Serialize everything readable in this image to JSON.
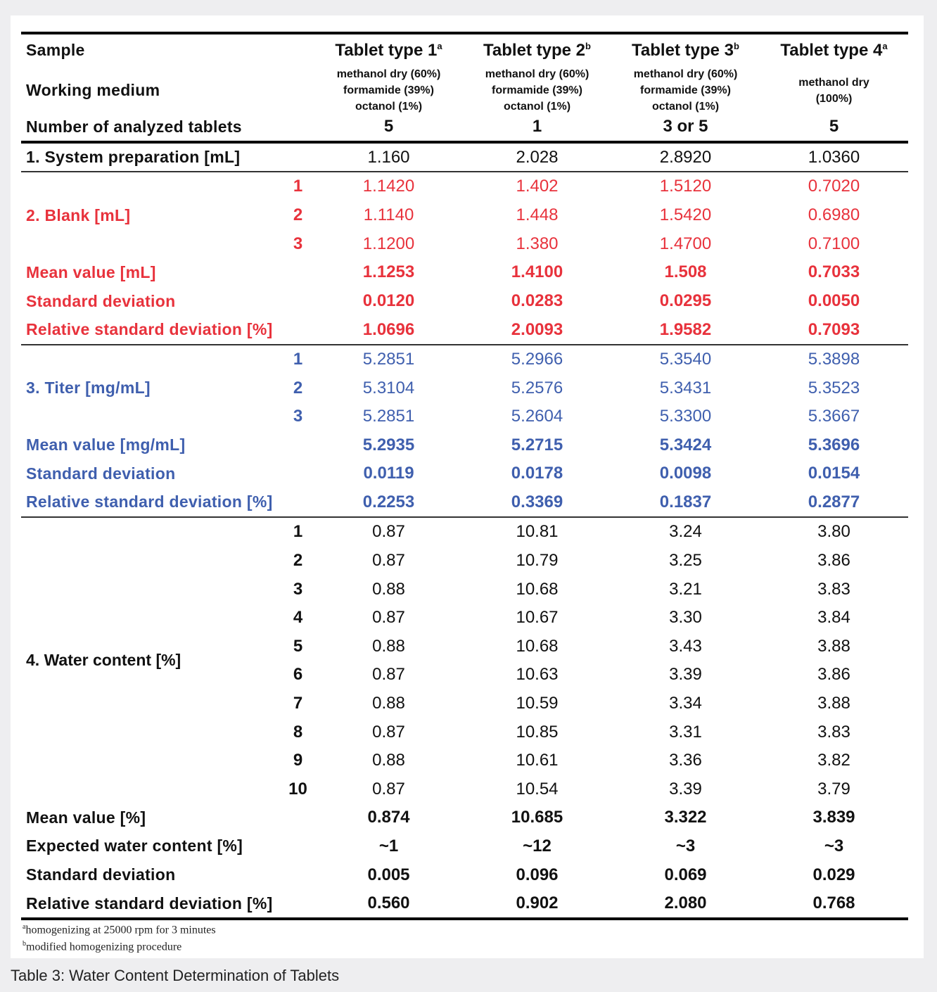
{
  "colors": {
    "blank": "#e8323c",
    "titer": "#3f5fae",
    "text": "#111111"
  },
  "header": {
    "sample_label": "Sample",
    "working_label": "Working medium",
    "number_label": "Number of analyzed tablets",
    "columns": [
      {
        "title": "Tablet type 1",
        "sup": "a",
        "medium": [
          "methanol dry (60%)",
          "formamide (39%)",
          "octanol (1%)"
        ],
        "n": "5"
      },
      {
        "title": "Tablet type 2",
        "sup": "b",
        "medium": [
          "methanol dry (60%)",
          "formamide (39%)",
          "octanol (1%)"
        ],
        "n": "1"
      },
      {
        "title": "Tablet type 3",
        "sup": "b",
        "medium": [
          "methanol dry (60%)",
          "formamide (39%)",
          "octanol (1%)"
        ],
        "n": "3 or 5"
      },
      {
        "title": "Tablet type 4",
        "sup": "a",
        "medium": [
          "methanol dry",
          "(100%)"
        ],
        "n": "5"
      }
    ]
  },
  "system": {
    "label": "1. System preparation [mL]",
    "values": [
      "1.160",
      "2.028",
      "2.8920",
      "1.0360"
    ]
  },
  "blank": {
    "label": "2. Blank [mL]",
    "replicates": [
      {
        "index": "1",
        "values": [
          "1.1420",
          "1.402",
          "1.5120",
          "0.7020"
        ]
      },
      {
        "index": "2",
        "values": [
          "1.1140",
          "1.448",
          "1.5420",
          "0.6980"
        ]
      },
      {
        "index": "3",
        "values": [
          "1.1200",
          "1.380",
          "1.4700",
          "0.7100"
        ]
      }
    ],
    "stats": [
      {
        "label": "Mean value [mL]",
        "values": [
          "1.1253",
          "1.4100",
          "1.508",
          "0.7033"
        ]
      },
      {
        "label": "Standard deviation",
        "values": [
          "0.0120",
          "0.0283",
          "0.0295",
          "0.0050"
        ]
      },
      {
        "label": "Relative standard deviation [%]",
        "values": [
          "1.0696",
          "2.0093",
          "1.9582",
          "0.7093"
        ]
      }
    ]
  },
  "titer": {
    "label": "3. Titer [mg/mL]",
    "replicates": [
      {
        "index": "1",
        "values": [
          "5.2851",
          "5.2966",
          "5.3540",
          "5.3898"
        ]
      },
      {
        "index": "2",
        "values": [
          "5.3104",
          "5.2576",
          "5.3431",
          "5.3523"
        ]
      },
      {
        "index": "3",
        "values": [
          "5.2851",
          "5.2604",
          "5.3300",
          "5.3667"
        ]
      }
    ],
    "stats": [
      {
        "label": "Mean value [mg/mL]",
        "values": [
          "5.2935",
          "5.2715",
          "5.3424",
          "5.3696"
        ]
      },
      {
        "label": "Standard deviation",
        "values": [
          "0.0119",
          "0.0178",
          "0.0098",
          "0.0154"
        ]
      },
      {
        "label": "Relative standard deviation [%]",
        "values": [
          "0.2253",
          "0.3369",
          "0.1837",
          "0.2877"
        ]
      }
    ]
  },
  "water": {
    "label": "4. Water content [%]",
    "replicates": [
      {
        "index": "1",
        "values": [
          "0.87",
          "10.81",
          "3.24",
          "3.80"
        ]
      },
      {
        "index": "2",
        "values": [
          "0.87",
          "10.79",
          "3.25",
          "3.86"
        ]
      },
      {
        "index": "3",
        "values": [
          "0.88",
          "10.68",
          "3.21",
          "3.83"
        ]
      },
      {
        "index": "4",
        "values": [
          "0.87",
          "10.67",
          "3.30",
          "3.84"
        ]
      },
      {
        "index": "5",
        "values": [
          "0.88",
          "10.68",
          "3.43",
          "3.88"
        ]
      },
      {
        "index": "6",
        "values": [
          "0.87",
          "10.63",
          "3.39",
          "3.86"
        ]
      },
      {
        "index": "7",
        "values": [
          "0.88",
          "10.59",
          "3.34",
          "3.88"
        ]
      },
      {
        "index": "8",
        "values": [
          "0.87",
          "10.85",
          "3.31",
          "3.83"
        ]
      },
      {
        "index": "9",
        "values": [
          "0.88",
          "10.61",
          "3.36",
          "3.82"
        ]
      },
      {
        "index": "10",
        "values": [
          "0.87",
          "10.54",
          "3.39",
          "3.79"
        ]
      }
    ],
    "stats": [
      {
        "label": "Mean value [%]",
        "values": [
          "0.874",
          "10.685",
          "3.322",
          "3.839"
        ]
      },
      {
        "label": "Expected water content [%]",
        "values": [
          "~1",
          "~12",
          "~3",
          "~3"
        ]
      },
      {
        "label": "Standard deviation",
        "values": [
          "0.005",
          "0.096",
          "0.069",
          "0.029"
        ]
      },
      {
        "label": "Relative standard deviation [%]",
        "values": [
          "0.560",
          "0.902",
          "2.080",
          "0.768"
        ]
      }
    ]
  },
  "footnotes": [
    {
      "sup": "a",
      "text": "homogenizing at 25000 rpm for 3 minutes"
    },
    {
      "sup": "b",
      "text": "modified homogenizing procedure"
    }
  ],
  "caption": "Table 3: Water Content Determination of Tablets"
}
